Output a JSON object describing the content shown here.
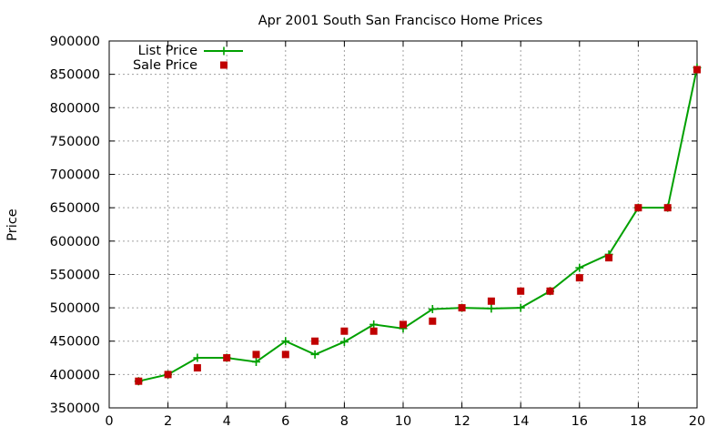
{
  "chart_data": {
    "type": "line",
    "title": "Apr 2001 South San Francisco Home Prices",
    "xlabel": "",
    "ylabel": "Price",
    "xlim": [
      0,
      20
    ],
    "ylim": [
      350000,
      900000
    ],
    "x_ticks": [
      "0",
      "2",
      "4",
      "6",
      "8",
      "10",
      "12",
      "14",
      "16",
      "18",
      "20"
    ],
    "y_ticks": [
      "350000",
      "400000",
      "450000",
      "500000",
      "550000",
      "600000",
      "650000",
      "700000",
      "750000",
      "800000",
      "850000",
      "900000"
    ],
    "grid": true,
    "legend_position": "top-left",
    "series": [
      {
        "name": "List Price",
        "style": "line-with-plus-markers",
        "color": "#00a000",
        "x": [
          1,
          2,
          3,
          4,
          5,
          6,
          7,
          8,
          9,
          10,
          11,
          12,
          13,
          14,
          15,
          16,
          17,
          18,
          19,
          20
        ],
        "values": [
          390000,
          400000,
          425000,
          425000,
          419000,
          450000,
          430000,
          449000,
          475000,
          469000,
          498000,
          500000,
          499000,
          500000,
          525000,
          560000,
          580000,
          650000,
          650000,
          860000
        ]
      },
      {
        "name": "Sale Price",
        "style": "square-markers",
        "color": "#c00000",
        "x": [
          1,
          2,
          3,
          4,
          5,
          6,
          7,
          8,
          9,
          10,
          11,
          12,
          13,
          14,
          15,
          16,
          17,
          18,
          19,
          20
        ],
        "values": [
          390000,
          400000,
          410000,
          425000,
          430000,
          430000,
          450000,
          465000,
          465000,
          475000,
          480000,
          500000,
          510000,
          525000,
          525000,
          545000,
          575000,
          650000,
          650000,
          857000
        ]
      }
    ]
  }
}
